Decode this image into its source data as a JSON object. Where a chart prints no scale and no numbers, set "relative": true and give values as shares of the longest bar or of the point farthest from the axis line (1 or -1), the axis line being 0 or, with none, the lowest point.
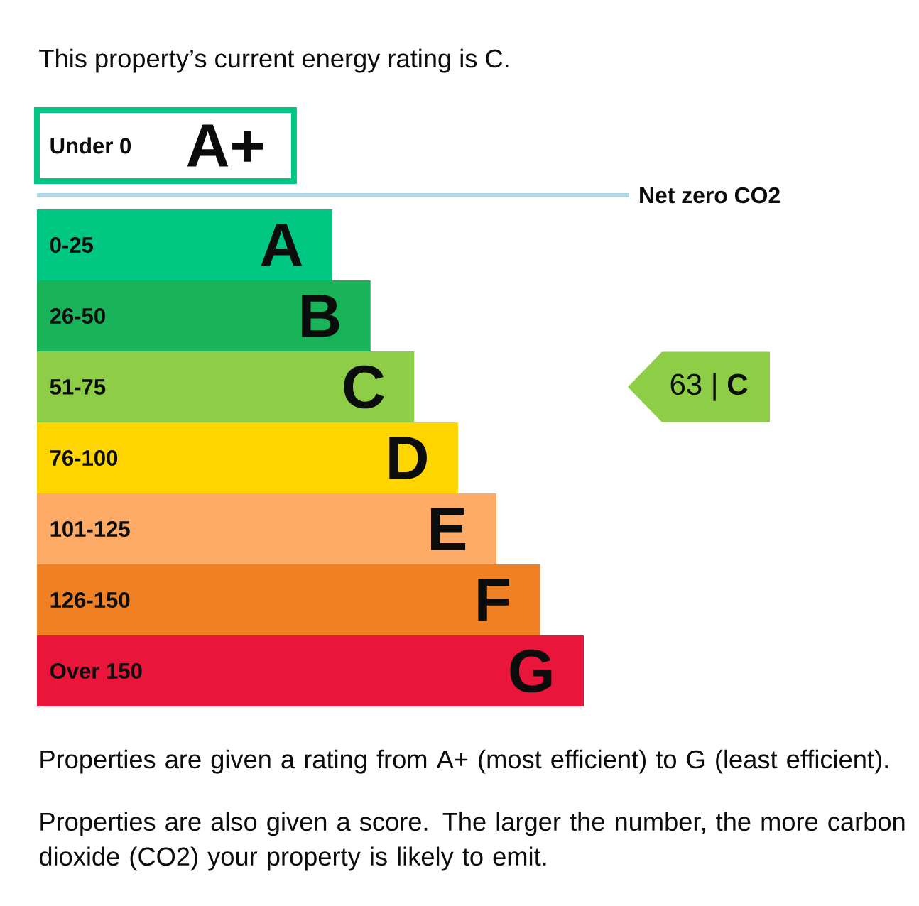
{
  "chart_data": {
    "type": "bar",
    "orientation": "horizontal",
    "relative": true,
    "title": "This property’s current energy rating is C.",
    "categories": [
      "Under 0",
      "0-25",
      "26-50",
      "51-75",
      "76-100",
      "101-125",
      "126-150",
      "Over 150"
    ],
    "values": [
      0.47,
      0.54,
      0.61,
      0.69,
      0.77,
      0.84,
      0.92,
      1
    ],
    "colors": [
      "#00c781",
      "#00c781",
      "#19b459",
      "#8dce46",
      "#ffd500",
      "#fcaa65",
      "#ef8023",
      "#e9153b"
    ],
    "ref_lines": [
      {
        "axis": "y",
        "value": "0-25",
        "label": "Net zero CO2",
        "color": "#afd7e1"
      }
    ],
    "annotations": [
      {
        "text": "A+",
        "x": 0.47,
        "y": "Under 0"
      },
      {
        "text": "A",
        "x": 0.54,
        "y": "0-25"
      },
      {
        "text": "B",
        "x": 0.61,
        "y": "26-50"
      },
      {
        "text": "C",
        "x": 0.69,
        "y": "51-75"
      },
      {
        "text": "D",
        "x": 0.77,
        "y": "76-100"
      },
      {
        "text": "E",
        "x": 0.84,
        "y": "101-125"
      },
      {
        "text": "F",
        "x": 0.92,
        "y": "126-150"
      },
      {
        "text": "G",
        "x": 1,
        "y": "Over 150"
      },
      "63 | **C**",
      "Properties are given a rating from A+ (most efficient) to G (least efficient).",
      "Properties are also given a score. The larger the number, the more carbon dioxide (CO2) your property is likely to emit."
    ],
    "tick_labels": "y"
  }
}
